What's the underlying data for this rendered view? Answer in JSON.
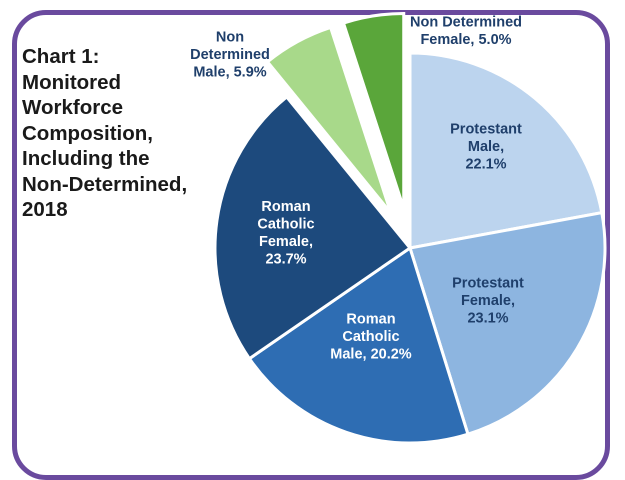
{
  "title": "Chart 1:\nMonitored\nWorkforce\nComposition,\nIncluding the\nNon-Determined,\n2018",
  "chart_data": {
    "type": "pie",
    "title": "Chart 1: Monitored Workforce Composition, Including the Non-Determined, 2018",
    "slices": [
      {
        "label": [
          "Protestant",
          "Male,",
          "22.1%"
        ],
        "name": "Protestant Male",
        "value": 22.1,
        "color": "#bcd4ee",
        "text_color": "#1f3f6b"
      },
      {
        "label": [
          "Protestant",
          "Female,",
          "23.1%"
        ],
        "name": "Protestant Female",
        "value": 23.1,
        "color": "#8db5e0",
        "text_color": "#1f3f6b"
      },
      {
        "label": [
          "Roman",
          "Catholic",
          "Male, 20.2%"
        ],
        "name": "Roman Catholic Male",
        "value": 20.2,
        "color": "#2e6db3",
        "text_color": "#ffffff"
      },
      {
        "label": [
          "Roman",
          "Catholic",
          "Female,",
          "23.7%"
        ],
        "name": "Roman Catholic Female",
        "value": 23.7,
        "color": "#1d4a7d",
        "text_color": "#ffffff"
      },
      {
        "label": [
          "Non",
          "Determined",
          "Male, 5.9%"
        ],
        "name": "Non Determined Male",
        "value": 5.9,
        "color": "#a8d98a",
        "text_color": "#1f3f6b",
        "exploded": true
      },
      {
        "label": [
          "Non Determined",
          "Female, 5.0%"
        ],
        "name": "Non Determined Female",
        "value": 5.0,
        "color": "#5aa63a",
        "text_color": "#1f3f6b",
        "exploded": true
      }
    ]
  }
}
